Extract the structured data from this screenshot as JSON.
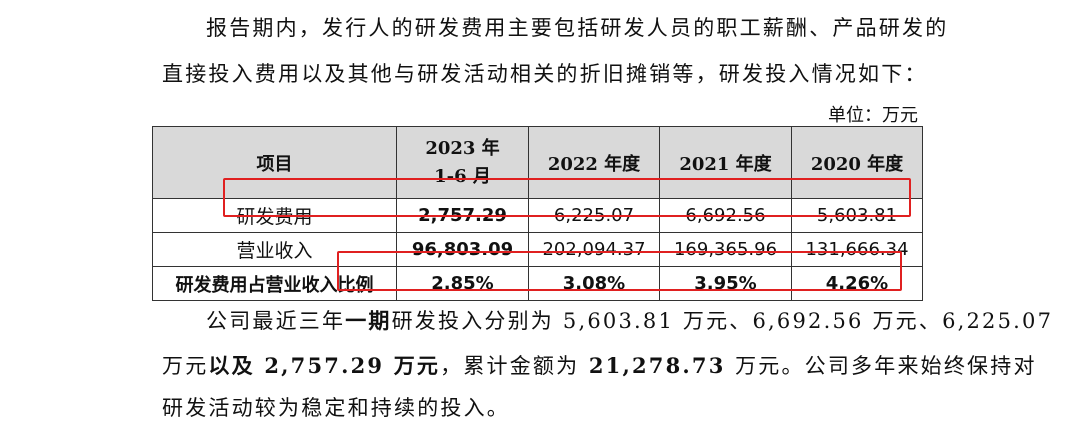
{
  "intro": {
    "line1": "报告期内，发行人的研发费用主要包括研发人员的职工薪酬、产品研发的",
    "line2": "直接投入费用以及其他与研发活动相关的折旧摊销等，研发投入情况如下："
  },
  "unit_label": "单位：万元",
  "table": {
    "headers": [
      "项目",
      "2023 年 1-6 月",
      "2022 年度",
      "2021 年度",
      "2020 年度"
    ],
    "rows": [
      {
        "label": "研发费用",
        "values": [
          "2,757.29",
          "6,225.07",
          "6,692.56",
          "5,603.81"
        ]
      },
      {
        "label": "营业收入",
        "values": [
          "96,803.09",
          "202,094.37",
          "169,365.96",
          "131,666.34"
        ]
      },
      {
        "label": "研发费用占营业收入比例",
        "values": [
          "2.85%",
          "3.08%",
          "3.95%",
          "4.26%"
        ]
      }
    ]
  },
  "summary": {
    "l1a": "公司最近三年",
    "l1b": "一期",
    "l1c": "研发投入分别为 5,603.81 万元、6,692.56 万元、6,225.07",
    "l2a": "万元",
    "l2b": "以及 2,757.29 万元",
    "l2c": "，累计金额为",
    "l2d": " 21,278.73 ",
    "l2e": "万元。公司多年来始终保持对",
    "l3": "研发活动较为稳定和持续的投入。"
  },
  "highlight_color": "#e02020"
}
